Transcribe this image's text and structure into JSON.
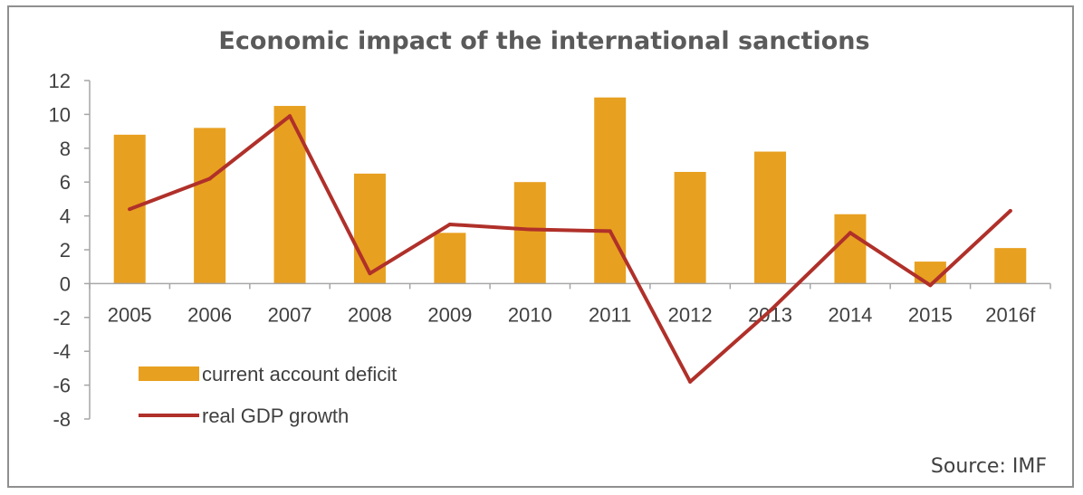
{
  "chart_data": {
    "type": "bar",
    "title": "Economic impact of the international sanctions",
    "xlabel": "",
    "ylabel": "",
    "categories": [
      "2005",
      "2006",
      "2007",
      "2008",
      "2009",
      "2010",
      "2011",
      "2012",
      "2013",
      "2014",
      "2015",
      "2016f"
    ],
    "ylim": [
      -8,
      12
    ],
    "yticks": [
      "12",
      "10",
      "8",
      "6",
      "4",
      "2",
      "0",
      "-2",
      "-4",
      "-6",
      "-8"
    ],
    "grid": false,
    "legend_position": "bottom-left",
    "series": [
      {
        "name": "current account deficit",
        "type": "bar",
        "color": "#e8a020",
        "values": [
          8.8,
          9.2,
          10.5,
          6.5,
          3.0,
          6.0,
          11.0,
          6.6,
          7.8,
          4.1,
          1.3,
          2.1
        ]
      },
      {
        "name": "real GDP growth",
        "type": "line",
        "color": "#b0302a",
        "values": [
          4.4,
          6.2,
          9.9,
          0.6,
          3.5,
          3.2,
          3.1,
          -5.8,
          -1.6,
          3.0,
          -0.1,
          4.3
        ]
      }
    ],
    "source_note": "Source: IMF"
  }
}
